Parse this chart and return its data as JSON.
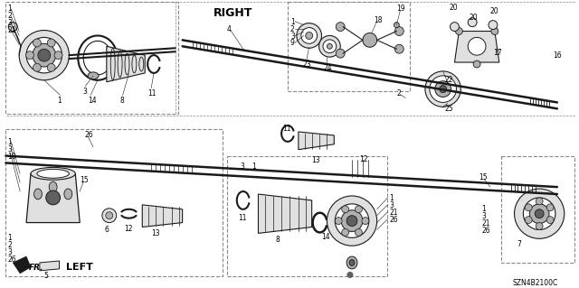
{
  "background_color": "#ffffff",
  "figure_width": 6.4,
  "figure_height": 3.19,
  "dpi": 100,
  "diagram_code": "SZN4B2100C",
  "label_RIGHT": "RIGHT",
  "label_LEFT": "LEFT",
  "label_FR": "FR.",
  "line_color": "#1a1a1a",
  "fill_light": "#e0e0e0",
  "fill_mid": "#b0b0b0",
  "fill_dark": "#606060",
  "fill_black": "#1a1a1a",
  "dashed_color": "#888888",
  "text_color": "#000000"
}
